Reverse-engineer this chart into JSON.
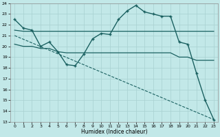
{
  "xlabel": "Humidex (Indice chaleur)",
  "bg_color": "#c2e8e8",
  "grid_color": "#a8d0d0",
  "line_color": "#1a6060",
  "xlim": [
    -0.5,
    23.5
  ],
  "ylim": [
    13,
    24
  ],
  "xticks": [
    0,
    1,
    2,
    3,
    4,
    5,
    6,
    7,
    8,
    9,
    10,
    11,
    12,
    13,
    14,
    15,
    16,
    17,
    18,
    19,
    20,
    21,
    22,
    23
  ],
  "yticks": [
    13,
    14,
    15,
    16,
    17,
    18,
    19,
    20,
    21,
    22,
    23,
    24
  ],
  "line1_x": [
    0,
    1,
    2,
    3,
    4,
    5,
    6,
    7,
    8,
    9,
    10,
    11,
    12,
    13,
    14,
    15,
    16,
    17,
    18,
    19,
    20,
    21,
    22,
    23
  ],
  "line1_y": [
    22.5,
    21.7,
    21.5,
    20.0,
    20.4,
    19.5,
    18.3,
    18.2,
    19.3,
    20.7,
    21.2,
    21.1,
    22.5,
    23.3,
    23.8,
    23.2,
    23.0,
    22.8,
    22.8,
    20.4,
    20.2,
    17.5,
    15.0,
    13.2
  ],
  "line2_x": [
    0,
    1,
    2,
    3,
    4,
    5,
    6,
    7,
    8,
    9,
    10,
    11,
    12,
    13,
    14,
    15,
    16,
    17,
    18,
    19,
    20,
    21,
    22,
    23
  ],
  "line2_y": [
    21.5,
    21.4,
    21.4,
    21.4,
    21.4,
    21.4,
    21.4,
    21.4,
    21.4,
    21.4,
    21.4,
    21.4,
    21.4,
    21.4,
    21.4,
    21.4,
    21.4,
    21.4,
    21.4,
    21.4,
    21.4,
    21.4,
    21.4,
    21.4
  ],
  "line3_x": [
    0,
    1,
    2,
    3,
    4,
    5,
    6,
    7,
    8,
    9,
    10,
    11,
    12,
    13,
    14,
    15,
    16,
    17,
    18,
    19,
    20,
    21,
    22,
    23
  ],
  "line3_y": [
    20.2,
    20.0,
    20.0,
    19.8,
    19.8,
    19.5,
    19.4,
    19.4,
    19.4,
    19.4,
    19.4,
    19.4,
    19.4,
    19.4,
    19.4,
    19.4,
    19.4,
    19.4,
    19.4,
    19.0,
    19.0,
    18.7,
    18.7,
    18.7
  ],
  "line4_x": [
    0,
    23
  ],
  "line4_y": [
    21.0,
    13.2
  ]
}
